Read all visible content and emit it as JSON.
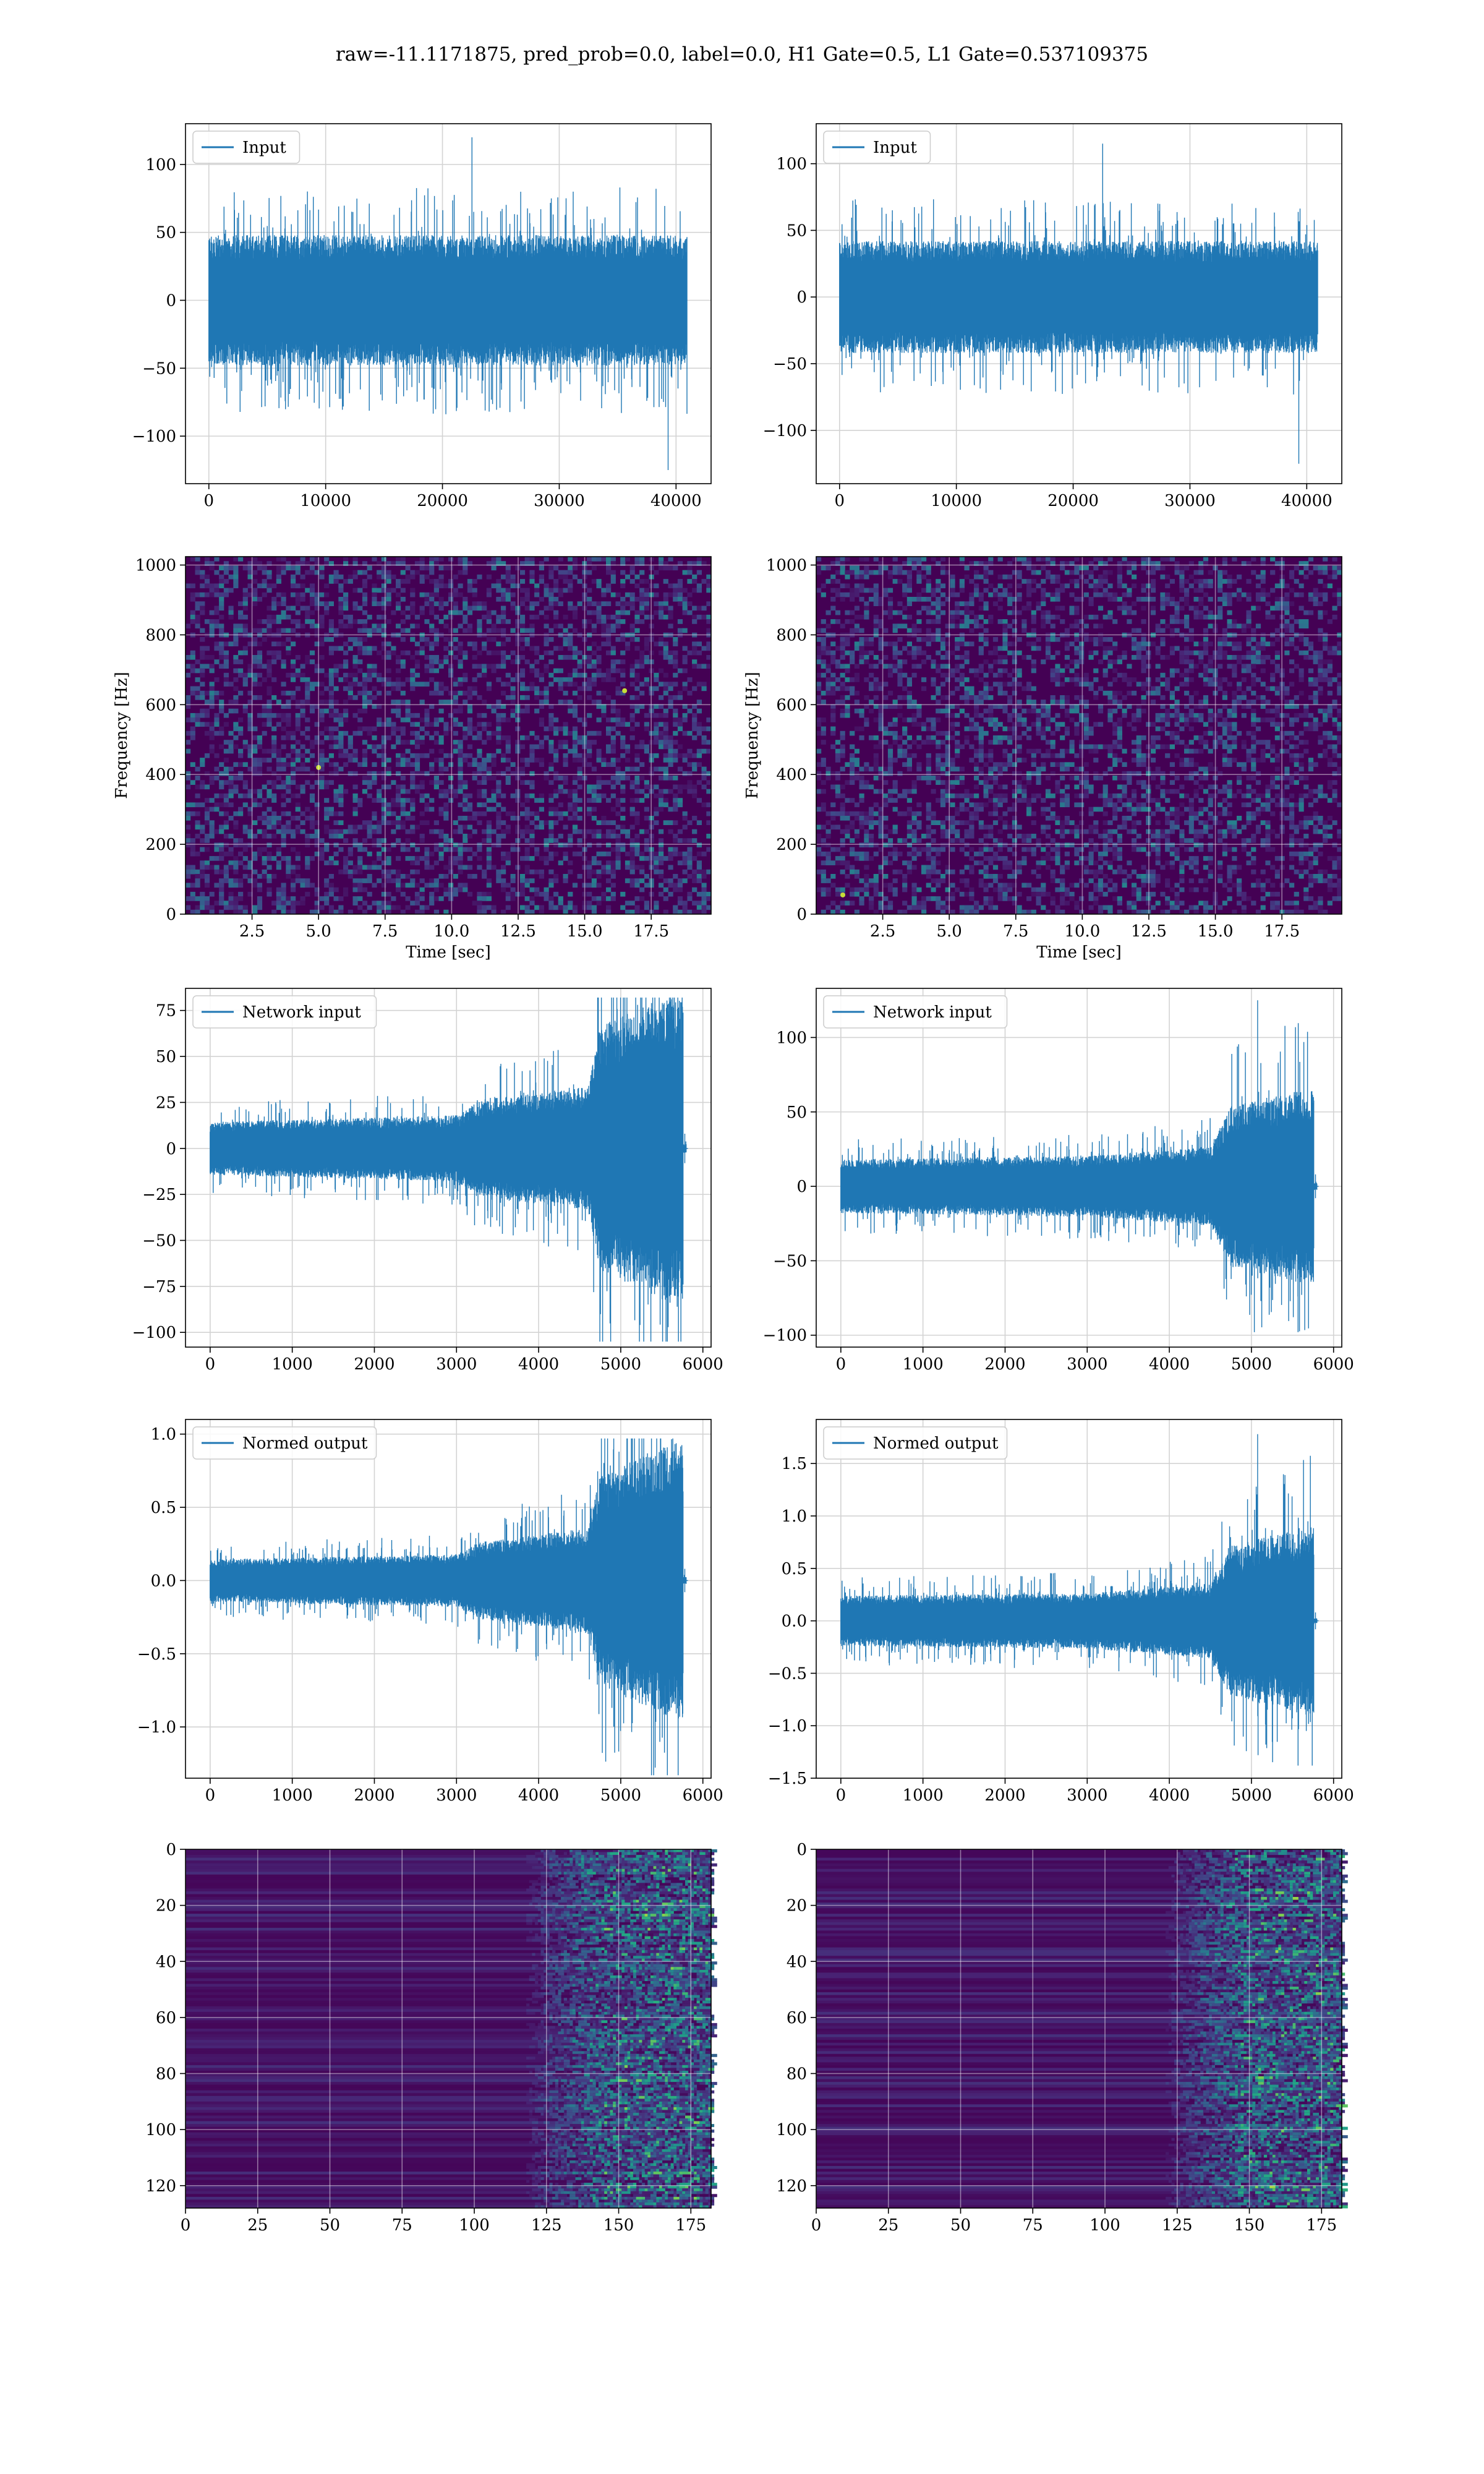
{
  "figure": {
    "suptitle": "raw=-11.1171875, pred_prob=0.0, label=0.0, H1 Gate=0.5, L1 Gate=0.537109375"
  },
  "colors": {
    "series": "#1f77b4",
    "grid": "#d3d3d3",
    "viridis_low": "#440154",
    "viridis_mid": "#21918c",
    "viridis_high": "#fde725"
  },
  "chart_data": [
    {
      "type": "line",
      "row": 0,
      "col": 0,
      "series": [
        {
          "name": "Input",
          "values": [],
          "envelope": {
            "n": 40960,
            "core": 40,
            "spike_max": 120,
            "spike_min": -125,
            "shape": "flat"
          }
        }
      ],
      "xlim": [
        -2000,
        43000
      ],
      "ylim": [
        -135,
        130
      ],
      "xticks": [
        0,
        10000,
        20000,
        30000,
        40000
      ],
      "xtick_labels": [
        "0",
        "10000",
        "20000",
        "30000",
        "40000"
      ],
      "yticks": [
        -100,
        -50,
        0,
        50,
        100
      ],
      "ytick_labels": [
        "−100",
        "−50",
        "0",
        "50",
        "100"
      ],
      "xlabel": "",
      "ylabel": "",
      "grid": true,
      "legend": "upper left"
    },
    {
      "type": "line",
      "row": 0,
      "col": 1,
      "series": [
        {
          "name": "Input",
          "values": [],
          "envelope": {
            "n": 40960,
            "core": 35,
            "spike_max": 115,
            "spike_min": -125,
            "shape": "flat"
          }
        }
      ],
      "xlim": [
        -2000,
        43000
      ],
      "ylim": [
        -140,
        130
      ],
      "xticks": [
        0,
        10000,
        20000,
        30000,
        40000
      ],
      "xtick_labels": [
        "0",
        "10000",
        "20000",
        "30000",
        "40000"
      ],
      "yticks": [
        -100,
        -50,
        0,
        50,
        100
      ],
      "ytick_labels": [
        "−100",
        "−50",
        "0",
        "50",
        "100"
      ],
      "xlabel": "",
      "ylabel": "",
      "grid": true,
      "legend": "upper left"
    },
    {
      "type": "heatmap",
      "row": 1,
      "col": 0,
      "colormap": "viridis",
      "xlim": [
        0.0,
        19.75
      ],
      "ylim": [
        0,
        1024
      ],
      "xticks": [
        2.5,
        5.0,
        7.5,
        10.0,
        12.5,
        15.0,
        17.5
      ],
      "xtick_labels": [
        "2.5",
        "5.0",
        "7.5",
        "10.0",
        "12.5",
        "15.0",
        "17.5"
      ],
      "yticks": [
        0,
        200,
        400,
        600,
        800,
        1000
      ],
      "ytick_labels": [
        "0",
        "200",
        "400",
        "600",
        "800",
        "1000"
      ],
      "xlabel": "Time [sec]",
      "ylabel": "Frequency [Hz]",
      "grid": true,
      "hotspots": [
        {
          "x": 5.0,
          "y": 420
        },
        {
          "x": 16.5,
          "y": 640
        }
      ]
    },
    {
      "type": "heatmap",
      "row": 1,
      "col": 1,
      "colormap": "viridis",
      "xlim": [
        0.0,
        19.75
      ],
      "ylim": [
        0,
        1024
      ],
      "xticks": [
        2.5,
        5.0,
        7.5,
        10.0,
        12.5,
        15.0,
        17.5
      ],
      "xtick_labels": [
        "2.5",
        "5.0",
        "7.5",
        "10.0",
        "12.5",
        "15.0",
        "17.5"
      ],
      "yticks": [
        0,
        200,
        400,
        600,
        800,
        1000
      ],
      "ytick_labels": [
        "0",
        "200",
        "400",
        "600",
        "800",
        "1000"
      ],
      "xlabel": "Time [sec]",
      "ylabel": "Frequency [Hz]",
      "grid": true,
      "hotspots": [
        {
          "x": 1.0,
          "y": 55
        }
      ]
    },
    {
      "type": "line",
      "row": 2,
      "col": 0,
      "series": [
        {
          "name": "Network input",
          "values": [],
          "envelope": {
            "n": 5800,
            "profile": [
              [
                0,
                12
              ],
              [
                3000,
                15
              ],
              [
                3300,
                22
              ],
              [
                4600,
                28
              ],
              [
                4750,
                55
              ],
              [
                5700,
                72
              ],
              [
                5760,
                2
              ],
              [
                5800,
                2
              ]
            ],
            "spike_max": 82,
            "spike_min": -105
          }
        }
      ],
      "xlim": [
        -300,
        6100
      ],
      "ylim": [
        -108,
        87
      ],
      "xticks": [
        0,
        1000,
        2000,
        3000,
        4000,
        5000,
        6000
      ],
      "xtick_labels": [
        "0",
        "1000",
        "2000",
        "3000",
        "4000",
        "5000",
        "6000"
      ],
      "yticks": [
        -100,
        -75,
        -50,
        -25,
        0,
        25,
        50,
        75
      ],
      "ytick_labels": [
        "−100",
        "−75",
        "−50",
        "−25",
        "0",
        "25",
        "50",
        "75"
      ],
      "xlabel": "",
      "ylabel": "",
      "grid": true,
      "legend": "upper left"
    },
    {
      "type": "line",
      "row": 2,
      "col": 1,
      "series": [
        {
          "name": "Network input",
          "values": [],
          "envelope": {
            "n": 5800,
            "profile": [
              [
                0,
                15
              ],
              [
                3000,
                17
              ],
              [
                4500,
                22
              ],
              [
                4750,
                45
              ],
              [
                5700,
                55
              ],
              [
                5760,
                2
              ],
              [
                5800,
                2
              ]
            ],
            "spike_max": 125,
            "spike_min": -98
          }
        }
      ],
      "xlim": [
        -300,
        6100
      ],
      "ylim": [
        -108,
        133
      ],
      "xticks": [
        0,
        1000,
        2000,
        3000,
        4000,
        5000,
        6000
      ],
      "xtick_labels": [
        "0",
        "1000",
        "2000",
        "3000",
        "4000",
        "5000",
        "6000"
      ],
      "yticks": [
        -100,
        -50,
        0,
        50,
        100
      ],
      "ytick_labels": [
        "−100",
        "−50",
        "0",
        "50",
        "100"
      ],
      "xlabel": "",
      "ylabel": "",
      "grid": true,
      "legend": "upper left"
    },
    {
      "type": "line",
      "row": 3,
      "col": 0,
      "series": [
        {
          "name": "Normed output",
          "values": [],
          "envelope": {
            "n": 5800,
            "profile": [
              [
                0,
                0.12
              ],
              [
                3000,
                0.15
              ],
              [
                3300,
                0.22
              ],
              [
                4600,
                0.3
              ],
              [
                4750,
                0.6
              ],
              [
                5700,
                0.8
              ],
              [
                5760,
                0.02
              ],
              [
                5800,
                0.02
              ]
            ],
            "spike_max": 0.97,
            "spike_min": -1.33
          }
        }
      ],
      "xlim": [
        -300,
        6100
      ],
      "ylim": [
        -1.35,
        1.1
      ],
      "xticks": [
        0,
        1000,
        2000,
        3000,
        4000,
        5000,
        6000
      ],
      "xtick_labels": [
        "0",
        "1000",
        "2000",
        "3000",
        "4000",
        "5000",
        "6000"
      ],
      "yticks": [
        -1.0,
        -0.5,
        0.0,
        0.5,
        1.0
      ],
      "ytick_labels": [
        "−1.0",
        "−0.5",
        "0.0",
        "0.5",
        "1.0"
      ],
      "xlabel": "",
      "ylabel": "",
      "grid": true,
      "legend": "upper left"
    },
    {
      "type": "line",
      "row": 3,
      "col": 1,
      "series": [
        {
          "name": "Normed output",
          "values": [],
          "envelope": {
            "n": 5800,
            "profile": [
              [
                0,
                0.2
              ],
              [
                3000,
                0.22
              ],
              [
                4500,
                0.3
              ],
              [
                4750,
                0.6
              ],
              [
                5700,
                0.75
              ],
              [
                5760,
                0.02
              ],
              [
                5800,
                0.02
              ]
            ],
            "spike_max": 1.78,
            "spike_min": -1.38
          }
        }
      ],
      "xlim": [
        -300,
        6100
      ],
      "ylim": [
        -1.5,
        1.92
      ],
      "xticks": [
        0,
        1000,
        2000,
        3000,
        4000,
        5000,
        6000
      ],
      "xtick_labels": [
        "0",
        "1000",
        "2000",
        "3000",
        "4000",
        "5000",
        "6000"
      ],
      "yticks": [
        -1.5,
        -1.0,
        -0.5,
        0.0,
        0.5,
        1.0,
        1.5
      ],
      "ytick_labels": [
        "−1.5",
        "−1.0",
        "−0.5",
        "0.0",
        "0.5",
        "1.0",
        "1.5"
      ],
      "xlabel": "",
      "ylabel": "",
      "grid": true,
      "legend": "upper left"
    },
    {
      "type": "heatmap",
      "row": 4,
      "col": 0,
      "colormap": "viridis",
      "xlim": [
        0,
        182
      ],
      "ylim": [
        128,
        0
      ],
      "xticks": [
        0,
        25,
        50,
        75,
        100,
        125,
        150,
        175
      ],
      "xtick_labels": [
        "0",
        "25",
        "50",
        "75",
        "100",
        "125",
        "150",
        "175"
      ],
      "yticks": [
        0,
        20,
        40,
        60,
        80,
        100,
        120
      ],
      "ytick_labels": [
        "0",
        "20",
        "40",
        "60",
        "80",
        "100",
        "120"
      ],
      "xlabel": "",
      "ylabel": "",
      "grid": true,
      "activity_onset": 115
    },
    {
      "type": "heatmap",
      "row": 4,
      "col": 1,
      "colormap": "viridis",
      "xlim": [
        0,
        182
      ],
      "ylim": [
        128,
        0
      ],
      "xticks": [
        0,
        25,
        50,
        75,
        100,
        125,
        150,
        175
      ],
      "xtick_labels": [
        "0",
        "25",
        "50",
        "75",
        "100",
        "125",
        "150",
        "175"
      ],
      "yticks": [
        0,
        20,
        40,
        60,
        80,
        100,
        120
      ],
      "ytick_labels": [
        "0",
        "20",
        "40",
        "60",
        "80",
        "100",
        "120"
      ],
      "xlabel": "",
      "ylabel": "",
      "grid": true,
      "activity_onset": 118
    }
  ]
}
